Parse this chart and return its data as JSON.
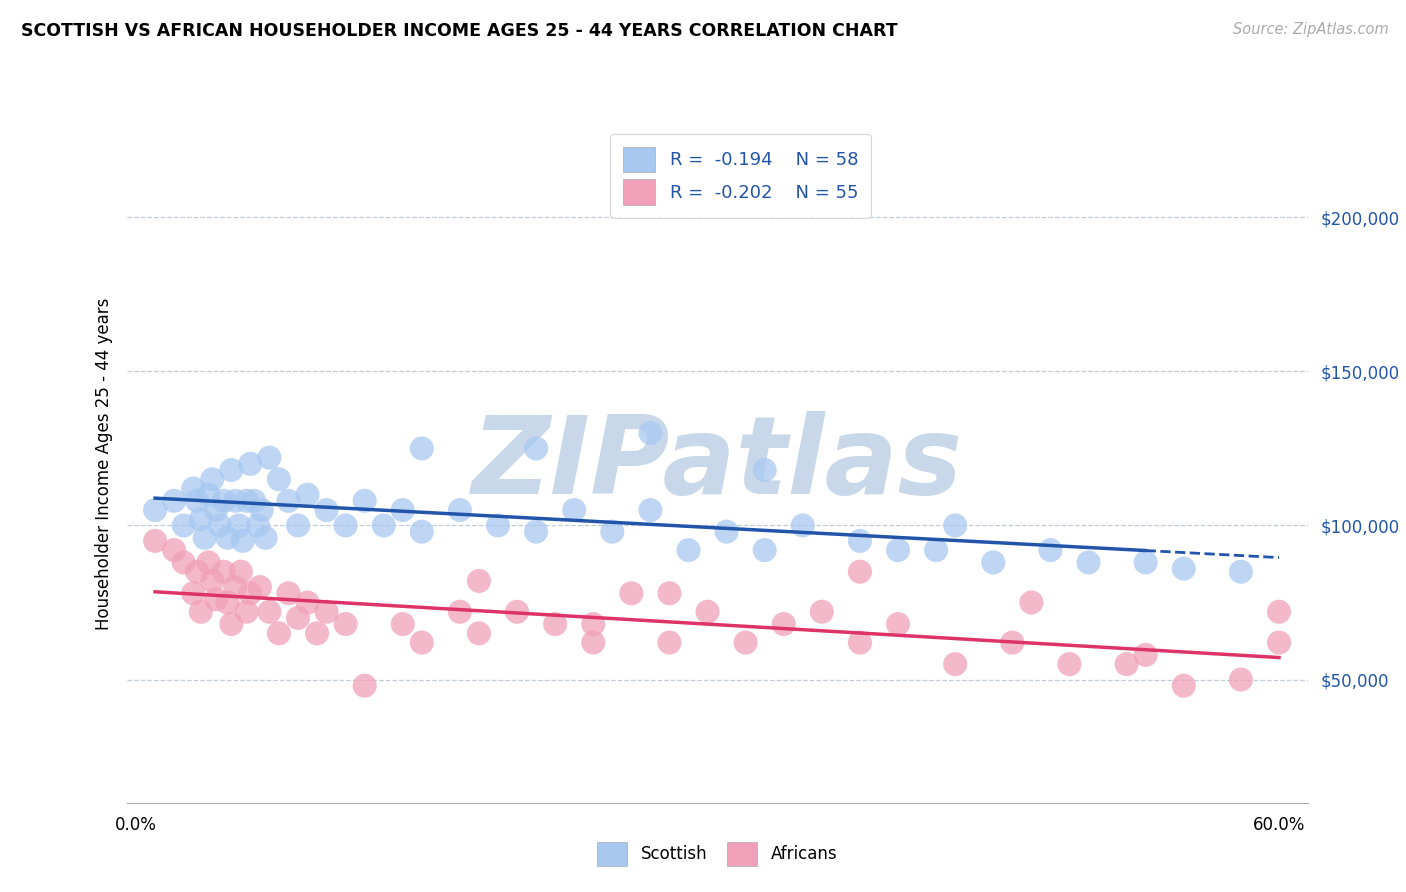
{
  "title": "SCOTTISH VS AFRICAN HOUSEHOLDER INCOME AGES 25 - 44 YEARS CORRELATION CHART",
  "source": "Source: ZipAtlas.com",
  "ylabel": "Householder Income Ages 25 - 44 years",
  "ytick_labels": [
    "$50,000",
    "$100,000",
    "$150,000",
    "$200,000"
  ],
  "ytick_values": [
    50000,
    100000,
    150000,
    200000
  ],
  "ylim": [
    10000,
    230000
  ],
  "xlim": [
    -0.005,
    0.615
  ],
  "r_scottish": "-0.194",
  "n_scottish": "58",
  "r_africans": "-0.202",
  "n_africans": "55",
  "scottish_color": "#a8c8f0",
  "africans_color": "#f0a0b8",
  "scottish_line_color": "#2255aa",
  "africans_line_color": "#dd3366",
  "watermark_color": "#c8d8ea",
  "background_color": "#ffffff",
  "grid_color": "#c0ccd8",
  "scottish_x": [
    0.01,
    0.02,
    0.025,
    0.03,
    0.032,
    0.034,
    0.036,
    0.038,
    0.04,
    0.042,
    0.044,
    0.046,
    0.048,
    0.05,
    0.052,
    0.054,
    0.056,
    0.058,
    0.06,
    0.062,
    0.064,
    0.066,
    0.068,
    0.07,
    0.075,
    0.08,
    0.085,
    0.09,
    0.1,
    0.11,
    0.12,
    0.13,
    0.14,
    0.15,
    0.17,
    0.19,
    0.21,
    0.23,
    0.25,
    0.27,
    0.29,
    0.31,
    0.33,
    0.35,
    0.38,
    0.4,
    0.43,
    0.45,
    0.48,
    0.5,
    0.53,
    0.55,
    0.27,
    0.21,
    0.33,
    0.15,
    0.58,
    0.42
  ],
  "scottish_y": [
    105000,
    108000,
    100000,
    112000,
    108000,
    102000,
    96000,
    110000,
    115000,
    105000,
    100000,
    108000,
    96000,
    118000,
    108000,
    100000,
    95000,
    108000,
    120000,
    108000,
    100000,
    105000,
    96000,
    122000,
    115000,
    108000,
    100000,
    110000,
    105000,
    100000,
    108000,
    100000,
    105000,
    98000,
    105000,
    100000,
    98000,
    105000,
    98000,
    105000,
    92000,
    98000,
    92000,
    100000,
    95000,
    92000,
    100000,
    88000,
    92000,
    88000,
    88000,
    86000,
    130000,
    125000,
    118000,
    125000,
    85000,
    92000
  ],
  "africans_x": [
    0.01,
    0.02,
    0.025,
    0.03,
    0.032,
    0.034,
    0.038,
    0.04,
    0.042,
    0.046,
    0.048,
    0.05,
    0.052,
    0.055,
    0.058,
    0.06,
    0.065,
    0.07,
    0.075,
    0.08,
    0.085,
    0.09,
    0.095,
    0.1,
    0.11,
    0.12,
    0.14,
    0.15,
    0.17,
    0.18,
    0.2,
    0.22,
    0.24,
    0.26,
    0.28,
    0.3,
    0.32,
    0.34,
    0.36,
    0.38,
    0.4,
    0.43,
    0.46,
    0.49,
    0.52,
    0.55,
    0.38,
    0.28,
    0.18,
    0.24,
    0.58,
    0.6,
    0.6,
    0.53,
    0.47
  ],
  "africans_y": [
    95000,
    92000,
    88000,
    78000,
    85000,
    72000,
    88000,
    82000,
    76000,
    85000,
    75000,
    68000,
    80000,
    85000,
    72000,
    78000,
    80000,
    72000,
    65000,
    78000,
    70000,
    75000,
    65000,
    72000,
    68000,
    48000,
    68000,
    62000,
    72000,
    65000,
    72000,
    68000,
    62000,
    78000,
    62000,
    72000,
    62000,
    68000,
    72000,
    62000,
    68000,
    55000,
    62000,
    55000,
    55000,
    48000,
    85000,
    78000,
    82000,
    68000,
    50000,
    62000,
    72000,
    58000,
    75000
  ]
}
